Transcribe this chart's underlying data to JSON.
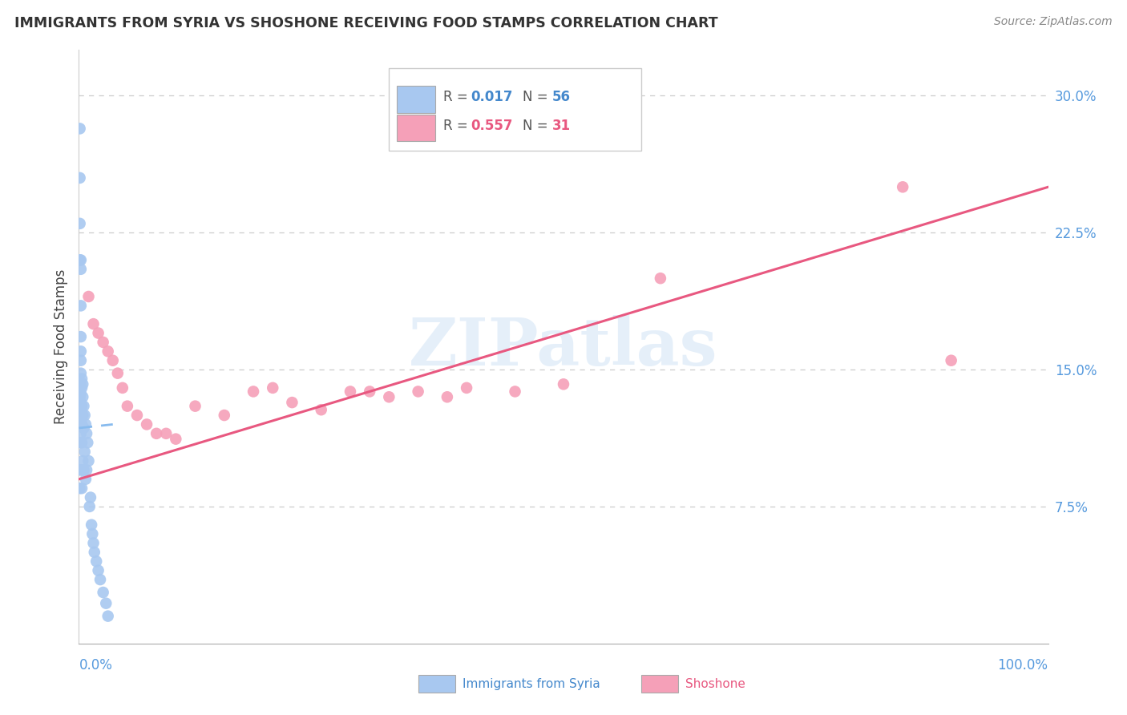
{
  "title": "IMMIGRANTS FROM SYRIA VS SHOSHONE RECEIVING FOOD STAMPS CORRELATION CHART",
  "source": "Source: ZipAtlas.com",
  "ylabel": "Receiving Food Stamps",
  "ytick_labels": [
    "7.5%",
    "15.0%",
    "22.5%",
    "30.0%"
  ],
  "ytick_values": [
    0.075,
    0.15,
    0.225,
    0.3
  ],
  "xlim": [
    0.0,
    1.0
  ],
  "ylim": [
    0.0,
    0.325
  ],
  "color_syria": "#a8c8f0",
  "color_shoshone": "#f5a0b8",
  "color_syria_line": "#88bbee",
  "color_shoshone_line": "#e85880",
  "color_axis": "#5599dd",
  "color_r_syria": "#4488cc",
  "color_r_shoshone": "#e85880",
  "watermark_text": "ZIPatlas",
  "legend_r_syria": "0.017",
  "legend_n_syria": "56",
  "legend_r_shoshone": "0.557",
  "legend_n_shoshone": "31",
  "syria_x": [
    0.001,
    0.001,
    0.001,
    0.001,
    0.001,
    0.001,
    0.001,
    0.001,
    0.001,
    0.001,
    0.002,
    0.002,
    0.002,
    0.002,
    0.002,
    0.002,
    0.002,
    0.002,
    0.002,
    0.002,
    0.002,
    0.002,
    0.003,
    0.003,
    0.003,
    0.003,
    0.003,
    0.003,
    0.003,
    0.004,
    0.004,
    0.004,
    0.004,
    0.005,
    0.005,
    0.005,
    0.006,
    0.006,
    0.007,
    0.007,
    0.008,
    0.008,
    0.009,
    0.01,
    0.011,
    0.012,
    0.013,
    0.014,
    0.015,
    0.016,
    0.018,
    0.02,
    0.022,
    0.025,
    0.028,
    0.03
  ],
  "syria_y": [
    0.282,
    0.255,
    0.23,
    0.21,
    0.135,
    0.13,
    0.12,
    0.11,
    0.095,
    0.085,
    0.21,
    0.205,
    0.185,
    0.168,
    0.16,
    0.155,
    0.148,
    0.143,
    0.137,
    0.132,
    0.128,
    0.115,
    0.145,
    0.14,
    0.13,
    0.12,
    0.11,
    0.095,
    0.085,
    0.142,
    0.135,
    0.125,
    0.1,
    0.13,
    0.118,
    0.095,
    0.125,
    0.105,
    0.12,
    0.09,
    0.115,
    0.095,
    0.11,
    0.1,
    0.075,
    0.08,
    0.065,
    0.06,
    0.055,
    0.05,
    0.045,
    0.04,
    0.035,
    0.028,
    0.022,
    0.015
  ],
  "shoshone_x": [
    0.01,
    0.015,
    0.02,
    0.025,
    0.03,
    0.035,
    0.04,
    0.045,
    0.05,
    0.06,
    0.07,
    0.08,
    0.09,
    0.1,
    0.12,
    0.15,
    0.18,
    0.2,
    0.22,
    0.25,
    0.28,
    0.3,
    0.32,
    0.35,
    0.38,
    0.4,
    0.45,
    0.5,
    0.6,
    0.85,
    0.9
  ],
  "shoshone_y": [
    0.19,
    0.175,
    0.17,
    0.165,
    0.16,
    0.155,
    0.148,
    0.14,
    0.13,
    0.125,
    0.12,
    0.115,
    0.115,
    0.112,
    0.13,
    0.125,
    0.138,
    0.14,
    0.132,
    0.128,
    0.138,
    0.138,
    0.135,
    0.138,
    0.135,
    0.14,
    0.138,
    0.142,
    0.2,
    0.25,
    0.155
  ],
  "syria_trendline_x": [
    0.0,
    0.035
  ],
  "syria_trendline_y": [
    0.118,
    0.12
  ],
  "shoshone_trendline_x": [
    0.0,
    1.0
  ],
  "shoshone_trendline_y": [
    0.09,
    0.25
  ]
}
